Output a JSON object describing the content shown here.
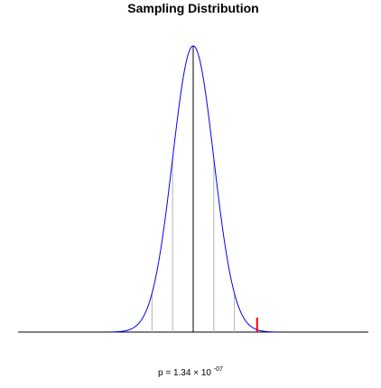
{
  "chart_data": {
    "type": "line",
    "title": "Sampling Distribution",
    "xlabel": "",
    "ylabel": "",
    "grid": false,
    "legend": "none",
    "distribution": {
      "shape": "normal",
      "mean": 0,
      "sd": 1
    },
    "xlim": [
      -8.5,
      8.5
    ],
    "ylim": [
      0,
      0.4
    ],
    "sd_reference_lines": [
      -2,
      -1,
      0,
      1,
      2
    ],
    "mean_line": 0,
    "observed_statistic": 3.1,
    "annotation": {
      "base": "p = 1.34 × 10",
      "exponent": "-07"
    },
    "colors": {
      "curve": "#0000ff",
      "observed": "#ff0000",
      "mean_line": "#000000",
      "sd_lines": "#b4b4b4",
      "baseline": "#000000"
    }
  }
}
